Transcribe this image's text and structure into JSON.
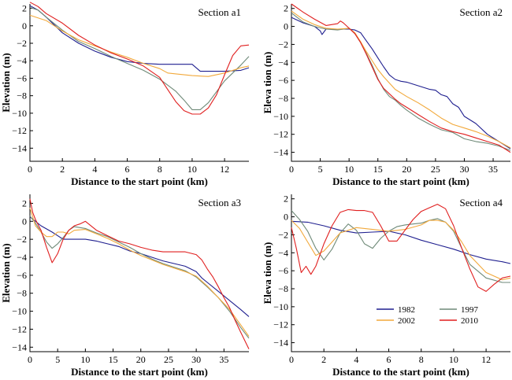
{
  "colors": {
    "1982": "#1f1f8f",
    "1997": "#6f8a78",
    "2002": "#f2a93b",
    "2010": "#e01f1f"
  },
  "legend": {
    "placement": "bottom-center of Section a4",
    "entries": [
      "1982",
      "1997",
      "2002",
      "2010"
    ]
  },
  "chart_data": [
    {
      "type": "line",
      "title": "Section a1",
      "xlabel": "Distance to the start point (km)",
      "ylabel": "Elevation (m)",
      "xlim": [
        0,
        13.5
      ],
      "ylim": [
        -15.5,
        2.5
      ],
      "xticks": [
        0,
        2,
        4,
        6,
        8,
        10,
        12
      ],
      "yticks": [
        2,
        0,
        -2,
        -4,
        -6,
        -8,
        -10,
        -12,
        -14
      ],
      "series": [
        {
          "name": "1982",
          "x": [
            0,
            0.5,
            1,
            2,
            3,
            4,
            5,
            6,
            7,
            8,
            9,
            10,
            10.5,
            11,
            12,
            13,
            13.5
          ],
          "y": [
            2.3,
            1.8,
            1,
            -0.8,
            -2,
            -2.9,
            -3.6,
            -4.1,
            -4.3,
            -4.4,
            -4.4,
            -4.4,
            -5.2,
            -5.2,
            -5.2,
            -5.1,
            -4.8
          ]
        },
        {
          "name": "1997",
          "x": [
            0,
            0.5,
            1,
            2,
            3,
            4,
            5,
            6,
            7,
            8,
            9,
            9.5,
            10,
            10.5,
            11,
            12,
            13,
            13.5
          ],
          "y": [
            2.1,
            1.8,
            1,
            -0.5,
            -1.8,
            -2.6,
            -3.5,
            -4.3,
            -5.1,
            -6.1,
            -7.5,
            -8.5,
            -9.6,
            -9.6,
            -8.8,
            -6.3,
            -4.5,
            -3.5
          ]
        },
        {
          "name": "2002",
          "x": [
            0,
            1,
            2,
            3,
            4,
            5,
            6,
            7,
            8,
            8.5,
            9,
            10,
            11,
            12,
            13,
            13.5
          ],
          "y": [
            1.2,
            0.6,
            -0.6,
            -1.6,
            -2.3,
            -3,
            -3.6,
            -4.3,
            -4.9,
            -5.4,
            -5.5,
            -5.7,
            -5.8,
            -5.4,
            -4.8,
            -4.6
          ]
        },
        {
          "name": "2010",
          "x": [
            0,
            0.5,
            1,
            2,
            3,
            4,
            5,
            6,
            7,
            8,
            8.5,
            9,
            9.5,
            10,
            10.5,
            11,
            11.5,
            12,
            12.5,
            13,
            13.5
          ],
          "y": [
            2.7,
            2.2,
            1.4,
            0.3,
            -1.1,
            -2.2,
            -3.1,
            -3.8,
            -4.6,
            -5.9,
            -7.3,
            -8.7,
            -9.7,
            -10.1,
            -10.1,
            -9.4,
            -7.9,
            -5.6,
            -3.4,
            -2.3,
            -2.2
          ]
        }
      ]
    },
    {
      "type": "line",
      "title": "Section a2",
      "xlabel": "Distance to the start point (km)",
      "ylabel": "Eleva tion (m)",
      "xlim": [
        0,
        38
      ],
      "ylim": [
        -15,
        2.5
      ],
      "xticks": [
        0,
        5,
        10,
        15,
        20,
        25,
        30,
        35
      ],
      "yticks": [
        2,
        0,
        -2,
        -4,
        -6,
        -8,
        -10,
        -12,
        -14
      ],
      "series": [
        {
          "name": "1982",
          "x": [
            0,
            2,
            4,
            5,
            5.3,
            6,
            8,
            10,
            11,
            12,
            13,
            14,
            15,
            16,
            17,
            18,
            19,
            20,
            22,
            24,
            25,
            26,
            27,
            28,
            29,
            30,
            32,
            34,
            36,
            38
          ],
          "y": [
            1,
            0.4,
            0,
            -0.5,
            -0.9,
            -0.3,
            -0.3,
            -0.3,
            -0.4,
            -0.7,
            -1.6,
            -2.5,
            -3.5,
            -4.5,
            -5.4,
            -5.9,
            -6.1,
            -6.2,
            -6.6,
            -7,
            -7.1,
            -7.6,
            -7.8,
            -8.6,
            -9,
            -10,
            -10.8,
            -12,
            -12.8,
            -13.6
          ]
        },
        {
          "name": "1997",
          "x": [
            0,
            2,
            4,
            6,
            8,
            10,
            11,
            12,
            13,
            14,
            15,
            16,
            17,
            18,
            19,
            20,
            22,
            24,
            26,
            28,
            30,
            32,
            34,
            36,
            38
          ],
          "y": [
            1.5,
            0.5,
            0,
            -0.3,
            -0.4,
            -0.2,
            -0.8,
            -1.8,
            -3,
            -4.3,
            -5.8,
            -7,
            -7.8,
            -8.2,
            -8.8,
            -9.3,
            -10.2,
            -10.9,
            -11.5,
            -11.8,
            -12.5,
            -12.8,
            -13,
            -13.3,
            -13.8
          ]
        },
        {
          "name": "2002",
          "x": [
            0,
            2,
            4,
            6,
            8,
            10,
            11,
            12,
            13,
            14,
            15,
            16,
            17,
            18,
            20,
            22,
            24,
            26,
            28,
            30,
            32,
            34,
            36,
            38
          ],
          "y": [
            1.7,
            0.8,
            0.2,
            -0.2,
            -0.3,
            -0.2,
            -0.7,
            -1.7,
            -2.8,
            -3.8,
            -4.8,
            -5.6,
            -6.3,
            -7,
            -7.8,
            -8.5,
            -9.3,
            -10.2,
            -10.9,
            -11.3,
            -11.7,
            -12.2,
            -12.8,
            -13.5
          ]
        },
        {
          "name": "2010",
          "x": [
            0,
            2,
            4,
            6,
            8,
            8.5,
            9,
            10,
            11,
            12,
            13,
            14,
            15,
            16,
            17,
            18,
            19,
            20,
            22,
            24,
            26,
            28,
            30,
            32,
            34,
            36,
            38
          ],
          "y": [
            2.5,
            1.6,
            0.8,
            0.1,
            0.3,
            0.6,
            0.4,
            -0.2,
            -0.8,
            -1.8,
            -3.1,
            -4.5,
            -5.9,
            -6.9,
            -7.5,
            -8.1,
            -8.6,
            -9,
            -9.8,
            -10.6,
            -11.3,
            -11.7,
            -12,
            -12.4,
            -12.8,
            -13.2,
            -14
          ]
        }
      ]
    },
    {
      "type": "line",
      "title": "Section a3",
      "xlabel": "Distance to the start point (km)",
      "ylabel": "Elevation (m)",
      "xlim": [
        0,
        39.5
      ],
      "ylim": [
        -14.5,
        3
      ],
      "xticks": [
        0,
        5,
        10,
        15,
        20,
        25,
        30,
        35
      ],
      "yticks": [
        2,
        0,
        -2,
        -4,
        -6,
        -8,
        -10,
        -12,
        -14
      ],
      "series": [
        {
          "name": "1982",
          "x": [
            0,
            2,
            4,
            5,
            6,
            8,
            10,
            12,
            14,
            16,
            18,
            20,
            22,
            24,
            26,
            28,
            30,
            31,
            32,
            34,
            36,
            38,
            39.5
          ],
          "y": [
            0.5,
            -0.5,
            -1.2,
            -1.6,
            -2,
            -2,
            -2,
            -2.2,
            -2.5,
            -2.8,
            -3.3,
            -3.6,
            -4,
            -4.4,
            -4.7,
            -5,
            -5.6,
            -6.3,
            -6.8,
            -7.8,
            -8.8,
            -9.8,
            -10.6
          ]
        },
        {
          "name": "1997",
          "x": [
            0,
            1,
            2,
            3,
            4,
            5,
            6,
            7,
            8,
            10,
            12,
            14,
            16,
            18,
            20,
            22,
            24,
            26,
            28,
            30,
            32,
            34,
            36,
            38,
            39.5
          ],
          "y": [
            0.6,
            -0.2,
            -1.2,
            -2.3,
            -3,
            -2.5,
            -1.8,
            -1,
            -0.6,
            -0.8,
            -1.3,
            -1.7,
            -2.3,
            -2.9,
            -3.6,
            -4.2,
            -4.7,
            -5.1,
            -5.5,
            -6.2,
            -7.3,
            -8.5,
            -10,
            -11.8,
            -13
          ]
        },
        {
          "name": "2002",
          "x": [
            0,
            1,
            2,
            3,
            4,
            5,
            6,
            7,
            8,
            10,
            12,
            14,
            16,
            18,
            20,
            22,
            24,
            26,
            28,
            30,
            32,
            34,
            36,
            38,
            39.5
          ],
          "y": [
            1.5,
            -0.5,
            -1.2,
            -1.7,
            -1.7,
            -1.2,
            -1.2,
            -1.4,
            -1,
            -0.9,
            -1.4,
            -1.9,
            -2.5,
            -3.2,
            -3.8,
            -4.3,
            -4.8,
            -5.2,
            -5.6,
            -6.1,
            -7.2,
            -8.5,
            -9.8,
            -11.5,
            -12.8
          ]
        },
        {
          "name": "2010",
          "x": [
            0,
            0.5,
            1,
            2,
            3,
            4,
            5,
            6,
            7,
            8,
            9,
            10,
            12,
            14,
            16,
            18,
            20,
            22,
            24,
            26,
            28,
            30,
            31,
            32,
            33,
            34,
            35,
            36,
            37,
            38,
            39.5
          ],
          "y": [
            2.5,
            1,
            0.2,
            -1,
            -2.9,
            -4.6,
            -3.6,
            -2,
            -1,
            -0.5,
            -0.3,
            0,
            -1,
            -1.6,
            -2.2,
            -2.5,
            -2.9,
            -3.2,
            -3.4,
            -3.4,
            -3.4,
            -3.7,
            -4.3,
            -5.3,
            -6.2,
            -7.3,
            -8.5,
            -9.6,
            -11,
            -12.3,
            -14.2
          ]
        }
      ]
    },
    {
      "type": "line",
      "title": "Section a4",
      "xlabel": "Distance to the start point (km)",
      "ylabel": "Eleva tion (m)",
      "xlim": [
        0,
        13.5
      ],
      "ylim": [
        -15,
        2.5
      ],
      "xticks": [
        0,
        2,
        4,
        6,
        8,
        10,
        12
      ],
      "yticks": [
        2,
        0,
        -2,
        -4,
        -6,
        -8,
        -10,
        -12,
        -14
      ],
      "series": [
        {
          "name": "1982",
          "x": [
            0,
            1,
            2,
            3,
            4,
            5,
            6,
            7,
            8,
            9,
            10,
            11,
            12,
            13,
            13.5
          ],
          "y": [
            -0.5,
            -0.6,
            -1,
            -1.5,
            -1.8,
            -1.7,
            -1.6,
            -2,
            -2.6,
            -3.1,
            -3.6,
            -4.2,
            -4.7,
            -5,
            -5.2
          ]
        },
        {
          "name": "1997",
          "x": [
            0,
            0.5,
            1,
            1.5,
            2,
            2.5,
            3,
            3.5,
            4,
            4.5,
            5,
            5.5,
            6,
            6.5,
            7,
            7.5,
            8,
            8.5,
            9,
            9.5,
            10,
            10.5,
            11,
            12,
            13,
            13.5
          ],
          "y": [
            0.7,
            -0.3,
            -1.6,
            -3.5,
            -4.8,
            -3.6,
            -1.8,
            -0.8,
            -1.5,
            -3,
            -3.5,
            -2.4,
            -1.6,
            -1.1,
            -0.9,
            -0.8,
            -0.7,
            -0.4,
            -0.2,
            -0.6,
            -1.6,
            -3.5,
            -5.3,
            -6.8,
            -7.3,
            -7.3
          ]
        },
        {
          "name": "2002",
          "x": [
            0,
            0.5,
            1,
            1.5,
            2,
            2.5,
            3,
            4,
            5,
            6,
            7,
            8,
            8.5,
            9,
            9.5,
            10,
            10.5,
            11,
            12,
            13,
            13.5
          ],
          "y": [
            -0.4,
            -1.3,
            -2.8,
            -4.3,
            -3.8,
            -2.8,
            -1.8,
            -1.2,
            -1.4,
            -1.6,
            -1.4,
            -0.9,
            -0.4,
            -0.4,
            -0.6,
            -1.5,
            -2.8,
            -4.3,
            -6.2,
            -7,
            -6.8
          ]
        },
        {
          "name": "2010",
          "x": [
            0,
            0.3,
            0.6,
            0.9,
            1.2,
            1.5,
            2,
            2.5,
            3,
            3.5,
            4,
            4.5,
            5,
            5.5,
            6,
            6.5,
            7,
            7.5,
            8,
            8.5,
            9,
            9.5,
            10,
            10.5,
            11,
            11.5,
            12,
            12.5,
            13,
            13.5
          ],
          "y": [
            -1.2,
            -3.5,
            -6.2,
            -5.5,
            -6.4,
            -5.5,
            -3,
            -1,
            0.5,
            0.8,
            0.7,
            0.7,
            0.5,
            -1,
            -2.7,
            -2.7,
            -1.5,
            -0.3,
            0.6,
            1,
            1.4,
            0.9,
            -1,
            -3.5,
            -5.8,
            -7.8,
            -8.3,
            -7.5,
            -6.8,
            -6.6
          ]
        }
      ]
    }
  ]
}
